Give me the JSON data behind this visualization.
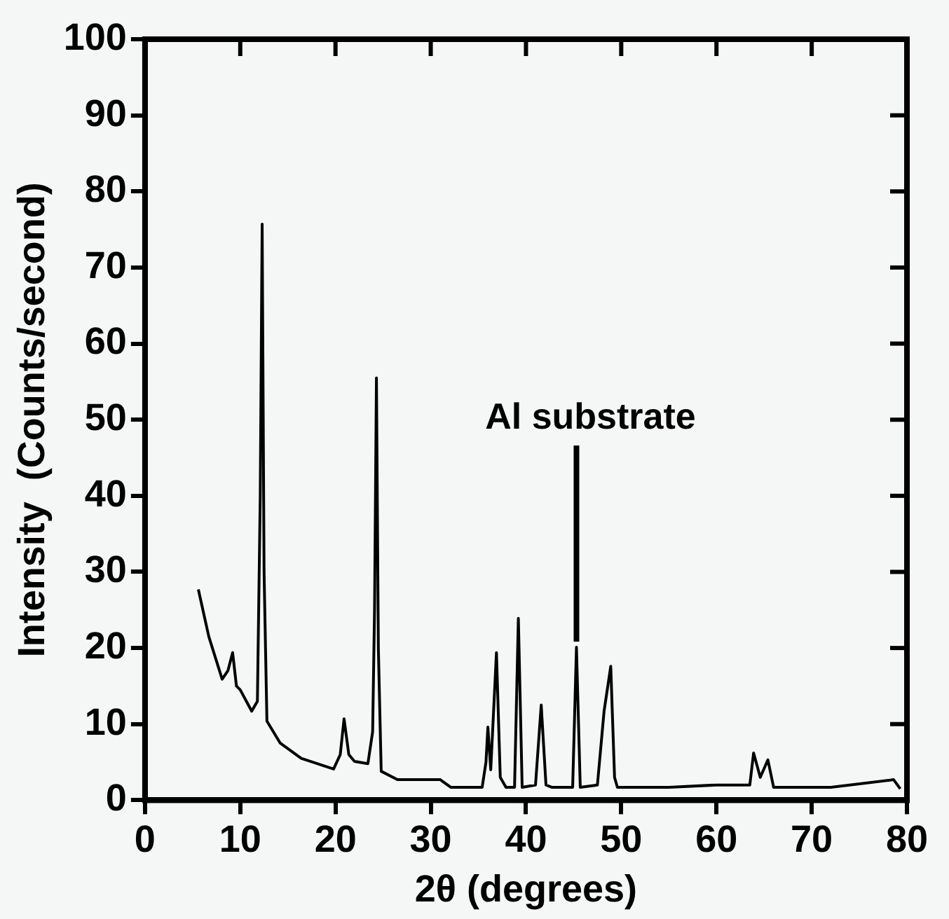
{
  "chart_data": {
    "type": "line",
    "xlabel": "2θ (degrees)",
    "ylabel": "Intensity  (Counts/second)",
    "xlim": [
      0,
      80
    ],
    "xticks": [
      0,
      10,
      20,
      30,
      40,
      50,
      60,
      70,
      80
    ],
    "ylim": [
      0,
      100
    ],
    "yticks": [
      0,
      10,
      20,
      30,
      40,
      50,
      60,
      70,
      80,
      90,
      100
    ],
    "grid": false,
    "legend": false,
    "marker": "none",
    "line_style": "solid",
    "annotations": [
      {
        "text": "Al substrate",
        "x": 45.3,
        "y": 20.1
      }
    ],
    "series": [
      {
        "color": "#000000",
        "x": [
          5.6,
          6.7,
          8.1,
          8.7,
          9.2,
          9.6,
          10.0,
          11.2,
          11.8,
          12.1,
          12.3,
          12.5,
          12.8,
          14.2,
          16.4,
          19.8,
          20.5,
          20.9,
          21.4,
          22.0,
          23.4,
          23.9,
          24.1,
          24.3,
          24.5,
          24.8,
          26.5,
          31,
          32.1,
          35.4,
          35.8,
          36.0,
          36.3,
          36.9,
          37.3,
          37.9,
          38.8,
          39.2,
          39.6,
          41.0,
          41.6,
          42.1,
          42.7,
          44.9,
          45.3,
          45.7,
          47.5,
          48.2,
          48.9,
          49.3,
          49.6,
          55,
          60,
          63.5,
          63.9,
          64.6,
          65.4,
          66,
          72,
          78.6,
          79.3
        ],
        "values": [
          27.7,
          21.5,
          15.9,
          17,
          19.4,
          15,
          14.5,
          11.7,
          13,
          40,
          75.7,
          30,
          10.4,
          7.5,
          5.5,
          4.1,
          6,
          10.7,
          6,
          5.1,
          4.8,
          9,
          25,
          55.5,
          20,
          3.8,
          2.7,
          2.7,
          1.7,
          1.7,
          5,
          9.6,
          4,
          19.4,
          3,
          1.7,
          1.7,
          23.9,
          1.7,
          2,
          12.5,
          2,
          1.7,
          1.7,
          20.1,
          1.7,
          2,
          11.7,
          17.6,
          3,
          1.7,
          1.7,
          2,
          2,
          6.2,
          3,
          5.3,
          1.7,
          1.7,
          2.7,
          1.5
        ]
      }
    ]
  }
}
